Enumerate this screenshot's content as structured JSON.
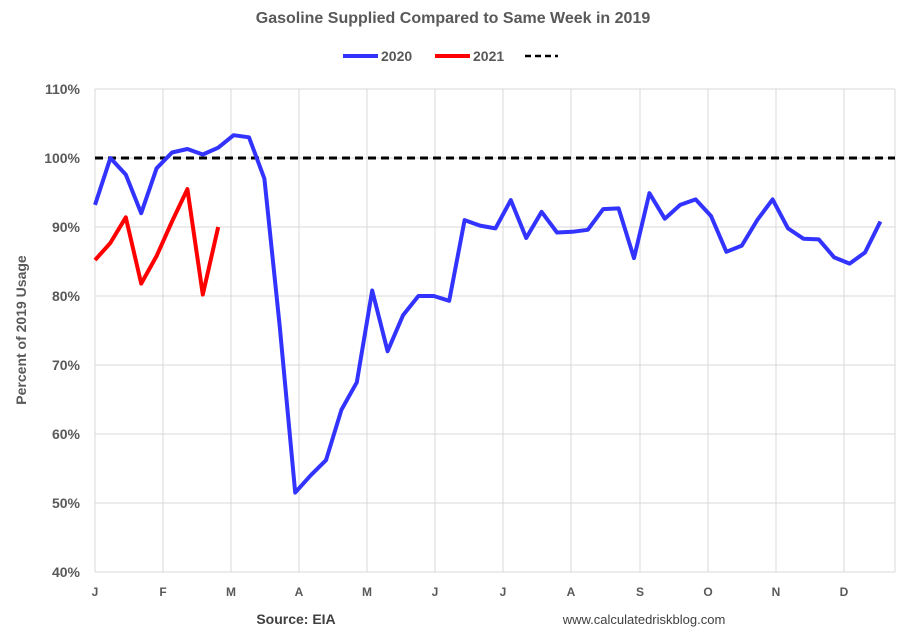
{
  "chart_data": {
    "type": "line",
    "title": "Gasoline Supplied Compared to Same Week in 2019",
    "ylabel": "Percent of 2019 Usage",
    "ylim": [
      40,
      110
    ],
    "y_ticks": [
      "40%",
      "50%",
      "60%",
      "70%",
      "80%",
      "90%",
      "100%",
      "110%"
    ],
    "y_tick_values": [
      40,
      50,
      60,
      70,
      80,
      90,
      100,
      110
    ],
    "x_tick_labels": [
      "J",
      "F",
      "M",
      "A",
      "M",
      "J",
      "J",
      "A",
      "S",
      "O",
      "N",
      "D"
    ],
    "grid": true,
    "legend_placement": "top",
    "series": [
      {
        "name": "2020",
        "color": "#3333ff",
        "style": "solid",
        "values": [
          93.2,
          100.0,
          97.6,
          92.0,
          98.5,
          100.8,
          101.3,
          100.5,
          101.5,
          103.3,
          103.0,
          97.0,
          75.5,
          51.5,
          54.0,
          56.2,
          63.5,
          67.5,
          80.8,
          72.0,
          77.2,
          80.0,
          80.0,
          79.3,
          91.0,
          90.2,
          89.8,
          93.9,
          88.4,
          92.2,
          89.2,
          89.3,
          89.6,
          92.6,
          92.7,
          85.5,
          94.9,
          91.2,
          93.2,
          94.0,
          91.6,
          86.4,
          87.3,
          91.0,
          94.0,
          89.8,
          88.3,
          88.2,
          85.6,
          84.7,
          86.3,
          90.8
        ]
      },
      {
        "name": "2021",
        "color": "#ff0000",
        "style": "solid",
        "values": [
          85.2,
          87.7,
          91.4,
          81.8,
          85.8,
          90.8,
          95.5,
          80.2,
          90.0
        ]
      },
      {
        "name": "",
        "color": "#000000",
        "style": "dashed",
        "constant": 100
      }
    ],
    "source": "Source: EIA",
    "website": "www.calculatedriskblog.com"
  }
}
